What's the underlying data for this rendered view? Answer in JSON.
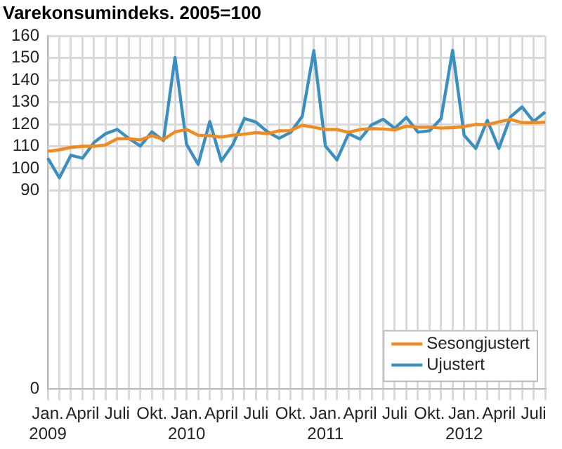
{
  "chart_data": {
    "type": "line",
    "title": "Varekonsumindeks. 2005=100",
    "categories": [
      "Jan.\n2009",
      null,
      null,
      "April",
      null,
      null,
      "Juli",
      null,
      null,
      "Okt.",
      null,
      null,
      "Jan.\n2010",
      null,
      null,
      "April",
      null,
      null,
      "Juli",
      null,
      null,
      "Okt.",
      null,
      null,
      "Jan.\n2011",
      null,
      null,
      "April",
      null,
      null,
      "Juli",
      null,
      null,
      "Okt.",
      null,
      null,
      "Jan.\n2012",
      null,
      null,
      "April",
      null,
      null,
      "Juli",
      null
    ],
    "series": [
      {
        "name": "Sesongjustert",
        "color": "#f28a1d",
        "values": [
          107.7,
          108.4,
          109.5,
          110,
          110,
          110.6,
          113.4,
          113.4,
          112.9,
          114.8,
          113.1,
          116.5,
          117.6,
          115,
          114.8,
          114.2,
          115,
          115.5,
          116.2,
          115.7,
          117,
          117.1,
          119.5,
          118.6,
          117.6,
          117.6,
          116.3,
          117.6,
          118,
          117.8,
          117.4,
          119.1,
          118.6,
          118.7,
          118.2,
          118.4,
          118.9,
          119.9,
          119.8,
          121.1,
          122.2,
          120.7,
          120.7,
          120.9
        ]
      },
      {
        "name": "Ujustert",
        "color": "#3a8fc1",
        "values": [
          104.6,
          95.7,
          105.9,
          104.6,
          111.7,
          115.7,
          117.6,
          113.6,
          110.1,
          116.5,
          112.6,
          150.2,
          110.8,
          101.8,
          121.2,
          103.3,
          110.8,
          122.6,
          120.9,
          116.5,
          113.6,
          116.3,
          123.6,
          153.3,
          110.1,
          103.8,
          115.7,
          113.2,
          119.7,
          122.2,
          118.1,
          123.1,
          116.4,
          117,
          122.5,
          153.5,
          114.9,
          109,
          121.7,
          109,
          123.3,
          127.8,
          121.2,
          125.5
        ]
      }
    ],
    "ylim": [
      0,
      160
    ],
    "yticks": [
      0,
      90,
      100,
      110,
      120,
      130,
      140,
      150,
      160
    ],
    "grid": true,
    "legend": "bottom right",
    "marker": "none",
    "line_style": "solid"
  }
}
